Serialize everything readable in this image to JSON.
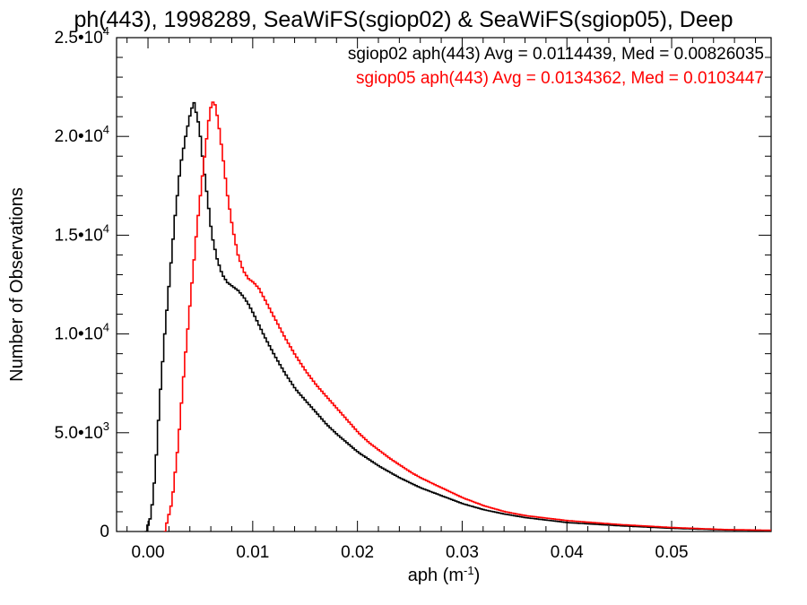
{
  "chart_data": {
    "type": "line",
    "title": "ph(443), 1998289, SeaWiFS(sgiop02) & SeaWiFS(sgiop05), Deep",
    "xlabel": "aph (m",
    "xlabel_sup": "-1",
    "xlabel_close": ")",
    "ylabel": "Number of Observations",
    "xlim": [
      -0.003,
      0.0595
    ],
    "ylim": [
      0,
      25000
    ],
    "grid": false,
    "legend_placement": "top-right",
    "x_ticks": [
      {
        "value": 0.0,
        "label": "0.00"
      },
      {
        "value": 0.01,
        "label": "0.01"
      },
      {
        "value": 0.02,
        "label": "0.02"
      },
      {
        "value": 0.03,
        "label": "0.03"
      },
      {
        "value": 0.04,
        "label": "0.04"
      },
      {
        "value": 0.05,
        "label": "0.05"
      }
    ],
    "y_ticks": [
      {
        "value": 0,
        "mant": "0",
        "exp": ""
      },
      {
        "value": 5000,
        "mant": "5.0•10",
        "exp": "3"
      },
      {
        "value": 10000,
        "mant": "1.0•10",
        "exp": "4"
      },
      {
        "value": 15000,
        "mant": "1.5•10",
        "exp": "4"
      },
      {
        "value": 20000,
        "mant": "2.0•10",
        "exp": "4"
      },
      {
        "value": 25000,
        "mant": "2.5•10",
        "exp": "4"
      }
    ],
    "series": [
      {
        "name": "sgiop02 aph(443) Avg = 0.0114439, Med = 0.00826035",
        "color": "#000000",
        "x": [
          -0.0003,
          0.0002,
          0.0006,
          0.001,
          0.0015,
          0.002,
          0.0025,
          0.003,
          0.0035,
          0.004,
          0.0043,
          0.0048,
          0.0052,
          0.0056,
          0.006,
          0.0065,
          0.007,
          0.0075,
          0.008,
          0.0085,
          0.009,
          0.0095,
          0.01,
          0.011,
          0.012,
          0.013,
          0.014,
          0.015,
          0.016,
          0.017,
          0.018,
          0.019,
          0.02,
          0.021,
          0.022,
          0.024,
          0.026,
          0.028,
          0.03,
          0.032,
          0.034,
          0.036,
          0.04,
          0.045,
          0.05,
          0.055,
          0.0595
        ],
        "y": [
          0,
          800,
          3000,
          6500,
          10000,
          13000,
          16000,
          18500,
          20000,
          21300,
          21700,
          20500,
          18500,
          16800,
          15000,
          13800,
          13000,
          12600,
          12400,
          12200,
          11900,
          11500,
          11000,
          9900,
          8900,
          8000,
          7200,
          6600,
          6000,
          5400,
          4900,
          4450,
          4000,
          3650,
          3300,
          2700,
          2200,
          1800,
          1400,
          1100,
          880,
          700,
          450,
          290,
          160,
          80,
          50
        ]
      },
      {
        "name": "sgiop05 aph(443) Avg = 0.0134362, Med = 0.0103447",
        "color": "#ff0000",
        "x": [
          0.0015,
          0.0022,
          0.0028,
          0.0034,
          0.004,
          0.0046,
          0.0052,
          0.0057,
          0.006,
          0.0063,
          0.0066,
          0.007,
          0.0075,
          0.008,
          0.0085,
          0.009,
          0.0095,
          0.01,
          0.0105,
          0.011,
          0.012,
          0.013,
          0.014,
          0.015,
          0.016,
          0.017,
          0.018,
          0.019,
          0.02,
          0.021,
          0.022,
          0.023,
          0.024,
          0.025,
          0.026,
          0.028,
          0.03,
          0.032,
          0.034,
          0.036,
          0.04,
          0.045,
          0.05,
          0.055,
          0.0595
        ],
        "y": [
          0,
          1500,
          4500,
          8500,
          12000,
          15500,
          18500,
          20800,
          21800,
          21600,
          20800,
          19200,
          17000,
          15300,
          14000,
          13200,
          12800,
          12600,
          12300,
          11800,
          10800,
          9800,
          8900,
          8100,
          7400,
          6800,
          6200,
          5600,
          5000,
          4500,
          4100,
          3700,
          3350,
          3000,
          2700,
          2200,
          1700,
          1300,
          1000,
          800,
          550,
          350,
          200,
          100,
          60
        ]
      }
    ]
  }
}
